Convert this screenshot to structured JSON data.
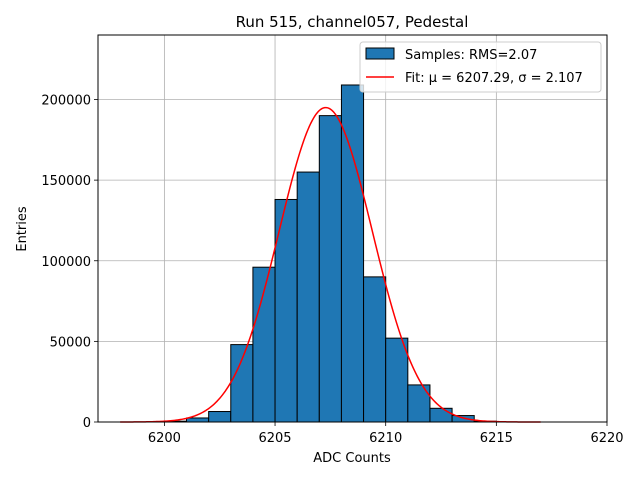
{
  "chart_data": {
    "type": "bar",
    "title": "Run 515, channel057, Pedestal",
    "xlabel": "ADC Counts",
    "ylabel": "Entries",
    "xlim": [
      6197,
      6220
    ],
    "ylim": [
      0,
      240000
    ],
    "xticks": [
      6200,
      6205,
      6210,
      6215,
      6220
    ],
    "yticks": [
      0,
      50000,
      100000,
      150000,
      200000
    ],
    "grid": true,
    "legend_position": "top-right",
    "bin_width": 1,
    "bins": [
      {
        "x": 6200,
        "value": 500
      },
      {
        "x": 6201,
        "value": 2500
      },
      {
        "x": 6202,
        "value": 6500
      },
      {
        "x": 6203,
        "value": 48000
      },
      {
        "x": 6204,
        "value": 96000
      },
      {
        "x": 6205,
        "value": 138000
      },
      {
        "x": 6206,
        "value": 155000
      },
      {
        "x": 6207,
        "value": 190000
      },
      {
        "x": 6208,
        "value": 209000
      },
      {
        "x": 6209,
        "value": 90000
      },
      {
        "x": 6210,
        "value": 52000
      },
      {
        "x": 6211,
        "value": 23000
      },
      {
        "x": 6212,
        "value": 8500
      },
      {
        "x": 6213,
        "value": 4000
      },
      {
        "x": 6214,
        "value": 500
      }
    ],
    "fit": {
      "mu": 6207.29,
      "sigma": 2.107,
      "amplitude": 195000,
      "x_range": [
        6198,
        6217
      ]
    },
    "series": [
      {
        "name": "Samples: RMS=2.07",
        "color": "#1f77b4"
      },
      {
        "name": "Fit: μ = 6207.29, σ = 2.107",
        "color": "#ff0000"
      }
    ]
  }
}
